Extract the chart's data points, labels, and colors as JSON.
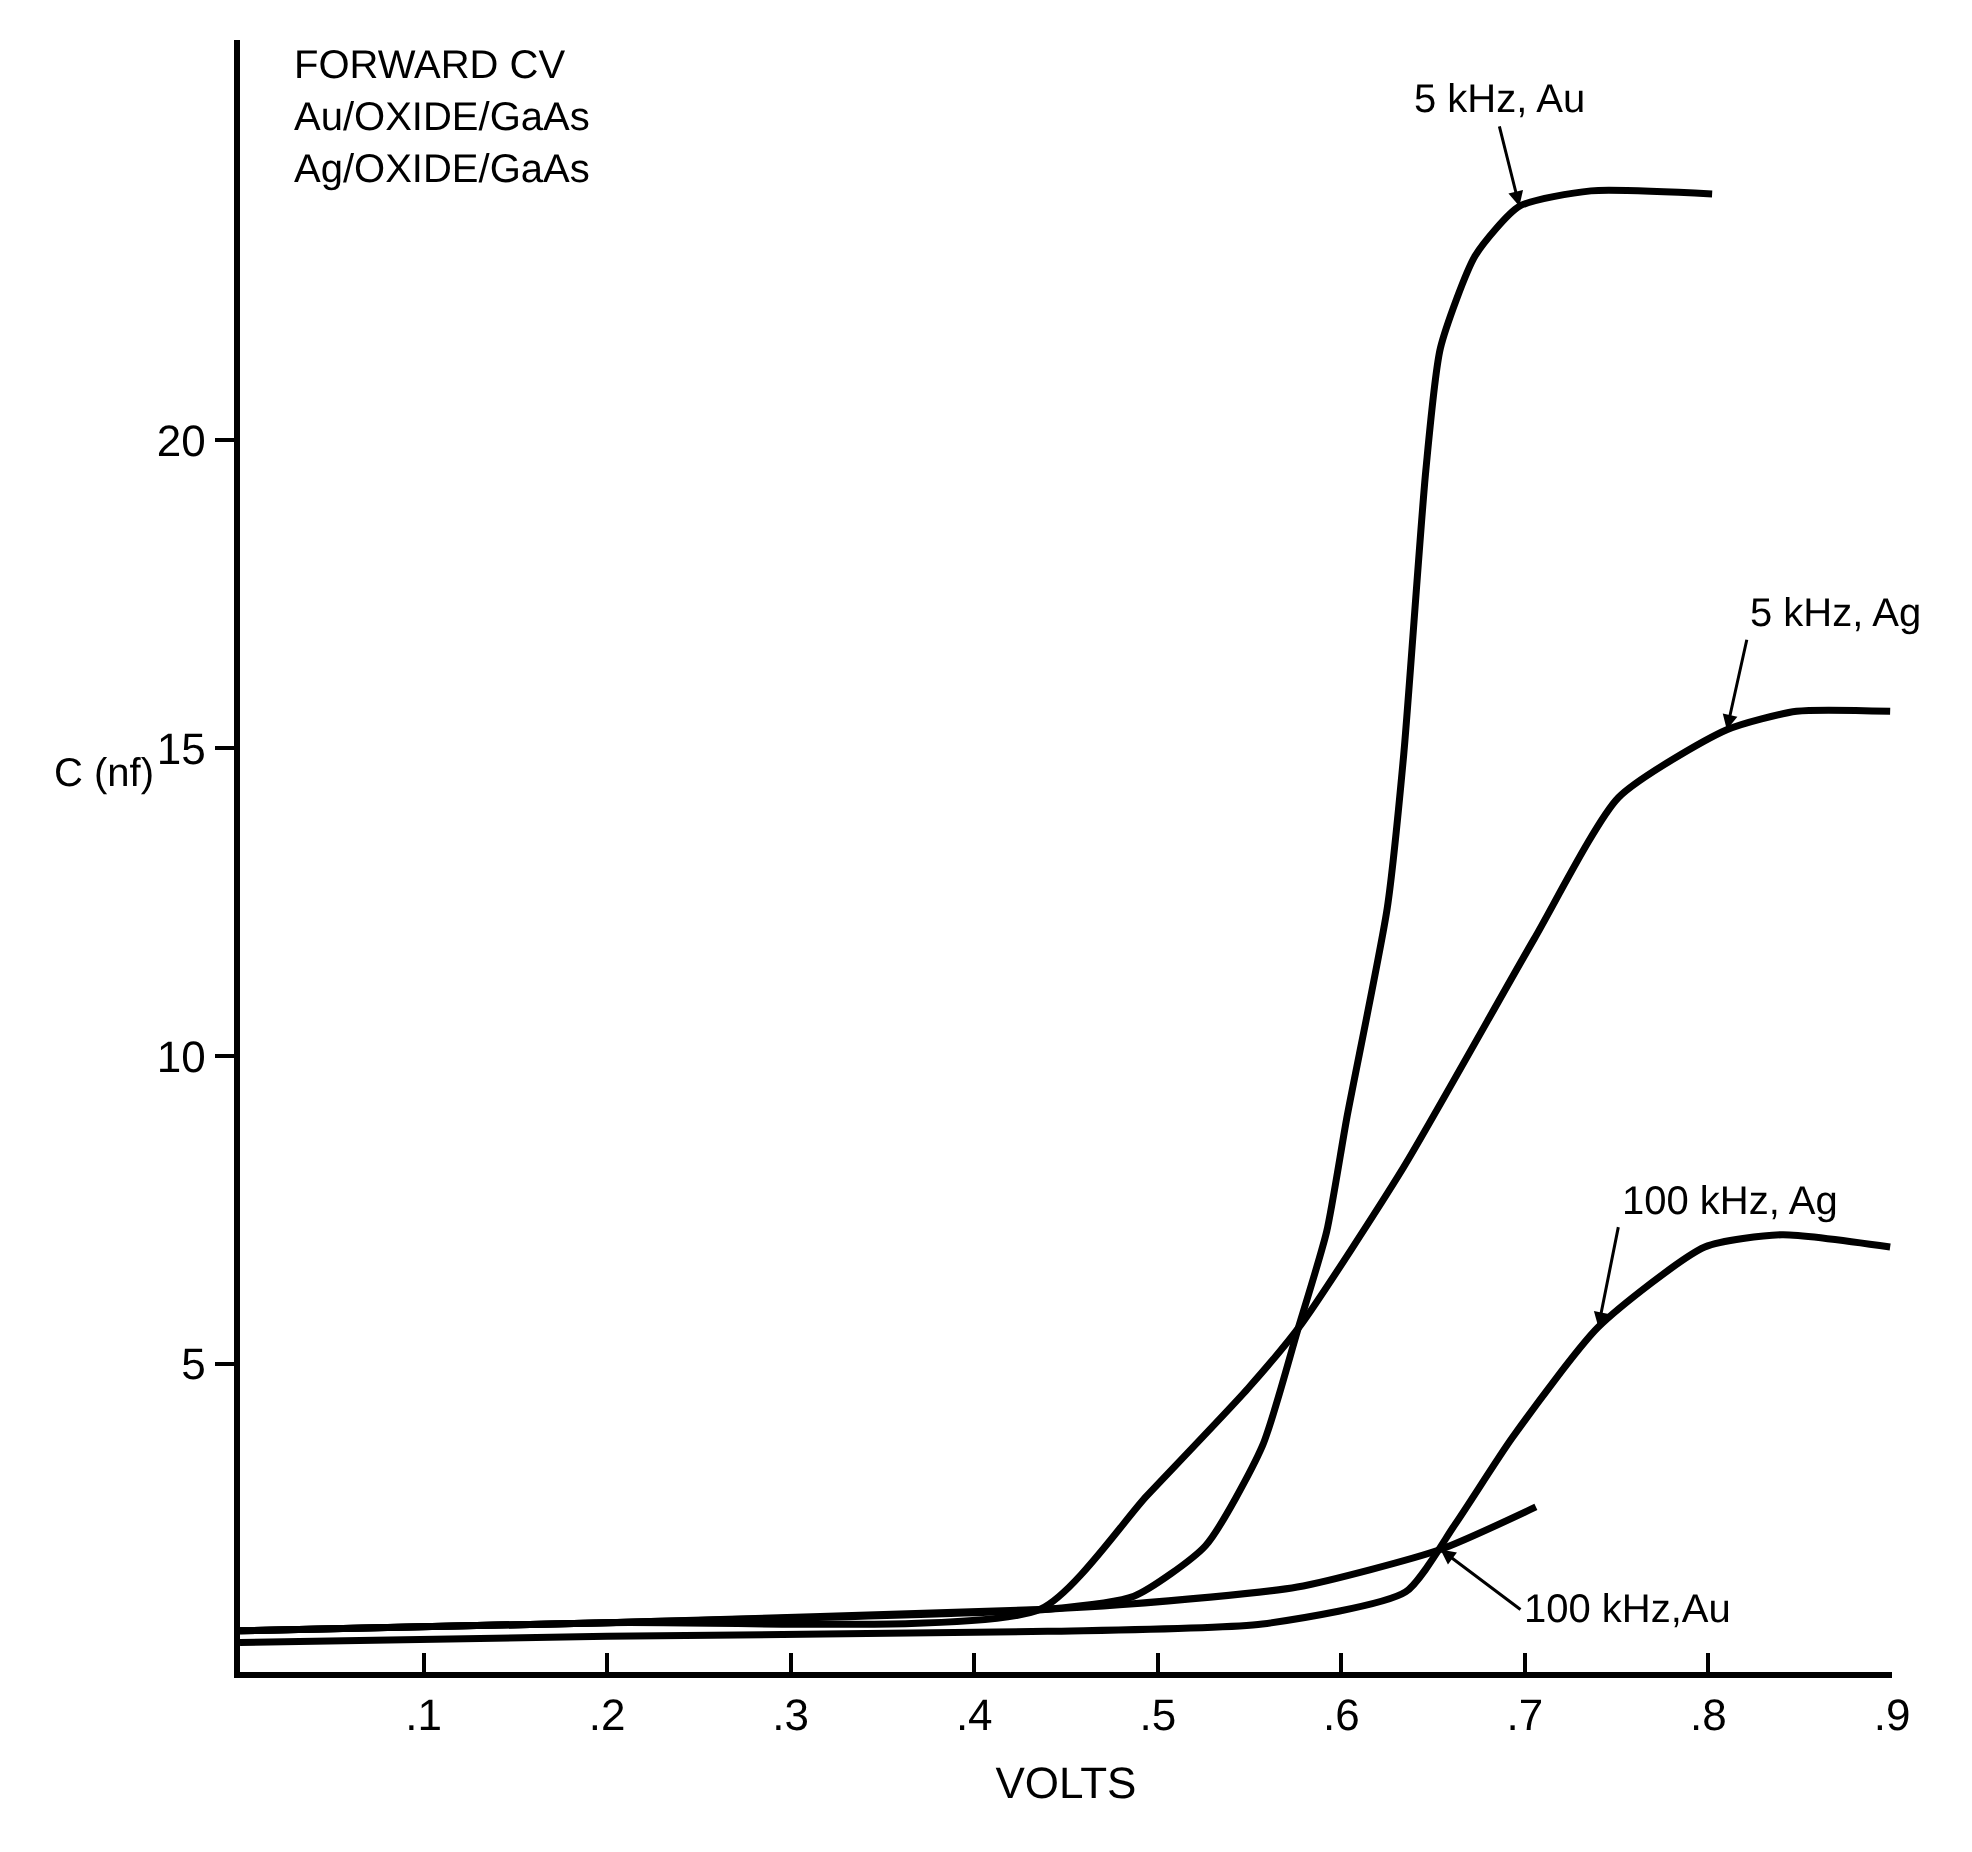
{
  "chart_data": {
    "type": "line",
    "title": "FORWARD CV\nAu/OXIDE/GaAs\nAg/OXIDE/GaAs",
    "xlabel": "VOLTS",
    "ylabel": "C (nf)",
    "xlim": [
      0,
      0.9
    ],
    "xticks": [
      {
        "value": 0.1,
        "label": ".1"
      },
      {
        "value": 0.2,
        "label": ".2"
      },
      {
        "value": 0.3,
        "label": ".3"
      },
      {
        "value": 0.4,
        "label": ".4"
      },
      {
        "value": 0.5,
        "label": ".5"
      },
      {
        "value": 0.6,
        "label": ".6"
      },
      {
        "value": 0.7,
        "label": ".7"
      },
      {
        "value": 0.8,
        "label": ".8"
      },
      {
        "value": 0.9,
        "label": ".9"
      }
    ],
    "ylim": [
      0,
      26.5
    ],
    "yticks": [
      5,
      10,
      15,
      20
    ],
    "legend": false,
    "marker": "none",
    "line_style": "solid",
    "series": [
      {
        "name": "5 kHz, Au",
        "color": "#000000",
        "x": [
          0,
          0.2,
          0.44,
          0.487,
          0.526,
          0.557,
          0.576,
          0.592,
          0.603,
          0.625,
          0.634,
          0.646,
          0.654,
          0.673,
          0.697,
          0.736,
          0.802
        ],
        "values": [
          0.67,
          0.8,
          1.02,
          1.23,
          2.05,
          3.67,
          5.53,
          7.15,
          9.0,
          12.4,
          14.9,
          19.5,
          21.5,
          23.0,
          23.8,
          24.05,
          24.0
        ]
      },
      {
        "name": "5 kHz, Ag",
        "color": "#000000",
        "x": [
          0,
          0.2,
          0.436,
          0.494,
          0.549,
          0.578,
          0.634,
          0.705,
          0.751,
          0.81,
          0.848,
          0.899
        ],
        "values": [
          0.67,
          0.8,
          1.02,
          2.86,
          4.6,
          5.64,
          8.2,
          11.9,
          14.2,
          15.3,
          15.6,
          15.6
        ]
      },
      {
        "name": "100 kHz, Ag",
        "color": "#000000",
        "x": [
          0,
          0.2,
          0.44,
          0.557,
          0.635,
          0.662,
          0.693,
          0.74,
          0.798,
          0.84,
          0.899
        ],
        "values": [
          0.48,
          0.58,
          0.66,
          0.78,
          1.3,
          2.4,
          3.8,
          5.6,
          6.9,
          7.1,
          6.9
        ]
      },
      {
        "name": "100 kHz,Au",
        "color": "#000000",
        "x": [
          0,
          0.2,
          0.44,
          0.479,
          0.576,
          0.654,
          0.706
        ],
        "values": [
          0.67,
          0.8,
          1.02,
          1.09,
          1.38,
          1.99,
          2.68
        ]
      }
    ]
  }
}
